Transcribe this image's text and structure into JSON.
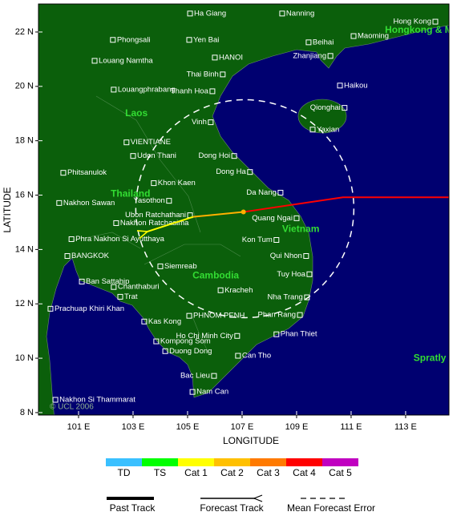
{
  "map": {
    "lonlim": [
      99.53,
      114.59
    ],
    "latlim": [
      7.91,
      23.03
    ],
    "lonticks": [
      {
        "value": 101,
        "label": "101 E"
      },
      {
        "value": 103,
        "label": "103 E"
      },
      {
        "value": 105,
        "label": "105 E"
      },
      {
        "value": 107,
        "label": "107 E"
      },
      {
        "value": 109,
        "label": "109 E"
      },
      {
        "value": 111,
        "label": "111 E"
      },
      {
        "value": 113,
        "label": "113 E"
      }
    ],
    "latticks": [
      {
        "value": 8,
        "label": "8 N"
      },
      {
        "value": 10,
        "label": "10 N"
      },
      {
        "value": 12,
        "label": "12 N"
      },
      {
        "value": 14,
        "label": "14 N"
      },
      {
        "value": 16,
        "label": "16 N"
      },
      {
        "value": 18,
        "label": "18 N"
      },
      {
        "value": 20,
        "label": "20 N"
      },
      {
        "value": 22,
        "label": "22 N"
      }
    ],
    "xlabel": "LONGITUDE",
    "ylabel": "LATITUDE",
    "copyright": "© UCL 2006",
    "cities": [
      {
        "name": "Ha Giang",
        "lon": 105.09,
        "lat": 22.68
      },
      {
        "name": "Nanning",
        "lon": 108.47,
        "lat": 22.68
      },
      {
        "name": "Hong Kong",
        "lon": 114.09,
        "lat": 22.38
      },
      {
        "name": "Phongsali",
        "lon": 102.26,
        "lat": 21.71
      },
      {
        "name": "Yen Bai",
        "lon": 105.06,
        "lat": 21.71
      },
      {
        "name": "Beihai",
        "lon": 109.44,
        "lat": 21.62
      },
      {
        "name": "Maoming",
        "lon": 111.09,
        "lat": 21.85
      },
      {
        "name": "Louang Namtha",
        "lon": 101.59,
        "lat": 20.94
      },
      {
        "name": "HANOI",
        "lon": 106.0,
        "lat": 21.06
      },
      {
        "name": "Zhanjiang",
        "lon": 110.24,
        "lat": 21.12
      },
      {
        "name": "Louangphrabang",
        "lon": 102.29,
        "lat": 19.88
      },
      {
        "name": "Thai Binh",
        "lon": 106.29,
        "lat": 20.44
      },
      {
        "name": "Haikou",
        "lon": 110.59,
        "lat": 20.03
      },
      {
        "name": "Thanh Hoa",
        "lon": 105.91,
        "lat": 19.82
      },
      {
        "name": "Qionghai",
        "lon": 110.76,
        "lat": 19.21
      },
      {
        "name": "Vinh",
        "lon": 105.85,
        "lat": 18.68
      },
      {
        "name": "Yaxian",
        "lon": 109.59,
        "lat": 18.41
      },
      {
        "name": "VIENTIANE",
        "lon": 102.76,
        "lat": 17.94
      },
      {
        "name": "Udon Thani",
        "lon": 103.0,
        "lat": 17.44
      },
      {
        "name": "Dong Hoi",
        "lon": 106.71,
        "lat": 17.44
      },
      {
        "name": "Phitsanulok",
        "lon": 100.44,
        "lat": 16.82
      },
      {
        "name": "Dong Ha",
        "lon": 107.29,
        "lat": 16.85
      },
      {
        "name": "Khon Kaen",
        "lon": 103.76,
        "lat": 16.44
      },
      {
        "name": "Da Nang",
        "lon": 108.41,
        "lat": 16.09
      },
      {
        "name": "Nakhon Sawan",
        "lon": 100.29,
        "lat": 15.71
      },
      {
        "name": "Yasothon",
        "lon": 104.32,
        "lat": 15.79
      },
      {
        "name": "Ubon Ratchathani",
        "lon": 105.09,
        "lat": 15.26
      },
      {
        "name": "Quang Ngai",
        "lon": 109.0,
        "lat": 15.15
      },
      {
        "name": "Nakhon Ratchasima",
        "lon": 102.38,
        "lat": 14.97
      },
      {
        "name": "Phra Nakhon Si Ayutthaya",
        "lon": 100.74,
        "lat": 14.38
      },
      {
        "name": "Kon Tum",
        "lon": 108.26,
        "lat": 14.35
      },
      {
        "name": "BANGKOK",
        "lon": 100.59,
        "lat": 13.76
      },
      {
        "name": "Qui Nhon",
        "lon": 109.35,
        "lat": 13.76
      },
      {
        "name": "Siemreab",
        "lon": 104.0,
        "lat": 13.38
      },
      {
        "name": "Tuy Hoa",
        "lon": 109.47,
        "lat": 13.09
      },
      {
        "name": "Ban Sattahip",
        "lon": 101.12,
        "lat": 12.82
      },
      {
        "name": "Chanthaburi",
        "lon": 102.29,
        "lat": 12.62
      },
      {
        "name": "Kracheh",
        "lon": 106.21,
        "lat": 12.5
      },
      {
        "name": "Trat",
        "lon": 102.53,
        "lat": 12.26
      },
      {
        "name": "Nha Trang",
        "lon": 109.38,
        "lat": 12.24
      },
      {
        "name": "Prachuap Khiri Khan",
        "lon": 99.97,
        "lat": 11.82
      },
      {
        "name": "PHNOM PENH",
        "lon": 105.06,
        "lat": 11.56
      },
      {
        "name": "Phan Rang",
        "lon": 109.12,
        "lat": 11.59
      },
      {
        "name": "Kas Kong",
        "lon": 103.41,
        "lat": 11.35
      },
      {
        "name": "Ho Chi Minh City",
        "lon": 106.82,
        "lat": 10.82
      },
      {
        "name": "Phan Thiet",
        "lon": 108.26,
        "lat": 10.88
      },
      {
        "name": "Kompong Som",
        "lon": 103.85,
        "lat": 10.62
      },
      {
        "name": "Duong Dong",
        "lon": 104.18,
        "lat": 10.26
      },
      {
        "name": "Can Tho",
        "lon": 106.85,
        "lat": 10.09
      },
      {
        "name": "Bac Lieu",
        "lon": 105.97,
        "lat": 9.35
      },
      {
        "name": "Nam Can",
        "lon": 105.18,
        "lat": 8.76
      },
      {
        "name": "Nakhon Si Thammarat",
        "lon": 100.15,
        "lat": 8.47
      }
    ],
    "regions": [
      {
        "name": "Laos",
        "lon": 102.71,
        "lat": 19.0
      },
      {
        "name": "Thailand",
        "lon": 102.18,
        "lat": 16.03
      },
      {
        "name": "Vietnam",
        "lon": 108.47,
        "lat": 14.74
      },
      {
        "name": "Cambodia",
        "lon": 105.18,
        "lat": 13.03
      },
      {
        "name": "Hongkong & Ma",
        "lon": 112.24,
        "lat": 22.06
      },
      {
        "name": "Spratly",
        "lon": 113.29,
        "lat": 10.0
      }
    ],
    "storm": {
      "past_track": {
        "color": "#ff0000",
        "lon": [
          114.59,
          110.7,
          107.05
        ],
        "lat": [
          15.92,
          15.92,
          15.38
        ]
      },
      "forecast_track": [
        {
          "color": "#ffb000",
          "lon": [
            107.05,
            105.2
          ],
          "lat": [
            15.38,
            15.2
          ]
        },
        {
          "color": "#ffff00",
          "lon": [
            105.2,
            103.5
          ],
          "lat": [
            15.2,
            14.65
          ]
        }
      ],
      "position": {
        "lon": 107.05,
        "lat": 15.38,
        "color": "#ffb000"
      },
      "error_circle": {
        "lon": 107.1,
        "lat": 15.5,
        "radius": 4.0
      }
    }
  },
  "legend": {
    "categories": [
      {
        "name": "TD",
        "color": "#3ac0ff"
      },
      {
        "name": "TS",
        "color": "#00ff00"
      },
      {
        "name": "Cat 1",
        "color": "#ffff00"
      },
      {
        "name": "Cat 2",
        "color": "#ffc000"
      },
      {
        "name": "Cat 3",
        "color": "#ff7a00"
      },
      {
        "name": "Cat 4",
        "color": "#ff0000"
      },
      {
        "name": "Cat 5",
        "color": "#c000c0"
      }
    ],
    "tracks": [
      "Past Track",
      "Forecast Track",
      "Mean Forecast Error"
    ]
  }
}
